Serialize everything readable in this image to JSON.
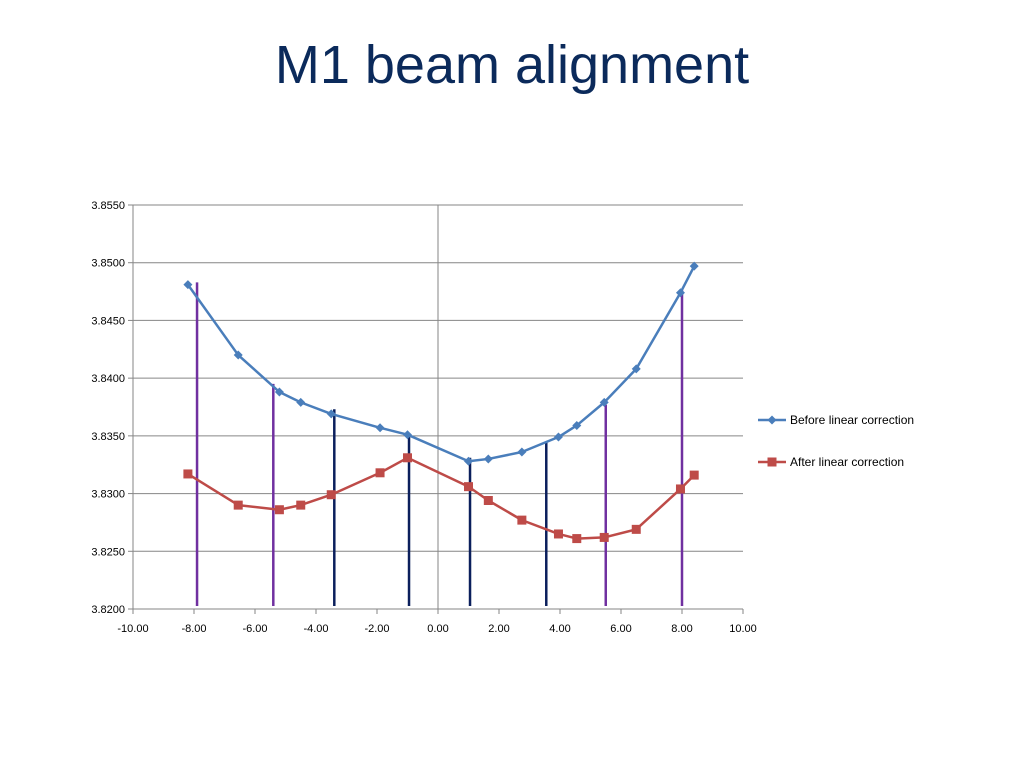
{
  "slide": {
    "title": "M1 beam alignment"
  },
  "colors": {
    "title": "#0b2a5b",
    "before": "#4a7ebb",
    "after": "#be4b48",
    "grid": "#868686",
    "purple_marker": "#7030a0",
    "navy_marker": "#0b1f5c"
  },
  "chart_data": {
    "type": "line",
    "title": "",
    "xlabel": "",
    "ylabel": "",
    "xlim": [
      -10,
      10
    ],
    "ylim": [
      3.82,
      3.855
    ],
    "x_ticks": [
      "-10.00",
      "-8.00",
      "-6.00",
      "-4.00",
      "-2.00",
      "0.00",
      "2.00",
      "4.00",
      "6.00",
      "8.00",
      "10.00"
    ],
    "y_ticks": [
      "3.8200",
      "3.8250",
      "3.8300",
      "3.8350",
      "3.8400",
      "3.8450",
      "3.8500",
      "3.8550"
    ],
    "grid": "horizontal",
    "legend_position": "right",
    "series": [
      {
        "name": "Before linear correction",
        "color": "#4a7ebb",
        "marker": "diamond",
        "x": [
          -8.2,
          -6.55,
          -5.2,
          -4.5,
          -3.5,
          -1.9,
          -1.0,
          1.0,
          1.65,
          2.75,
          3.95,
          4.55,
          5.45,
          6.5,
          7.95,
          8.4
        ],
        "y": [
          3.8481,
          3.842,
          3.8388,
          3.8379,
          3.8369,
          3.8357,
          3.8351,
          3.8328,
          3.833,
          3.8336,
          3.8349,
          3.8359,
          3.8379,
          3.8408,
          3.8474,
          3.8497
        ]
      },
      {
        "name": "After linear correction",
        "color": "#be4b48",
        "marker": "square",
        "x": [
          -8.2,
          -6.55,
          -5.2,
          -4.5,
          -3.5,
          -1.9,
          -1.0,
          1.0,
          1.65,
          2.75,
          3.95,
          4.55,
          5.45,
          6.5,
          7.95,
          8.4
        ],
        "y": [
          3.8317,
          3.829,
          3.8286,
          3.829,
          3.8299,
          3.8318,
          3.8331,
          3.8306,
          3.8294,
          3.8277,
          3.8265,
          3.8261,
          3.8262,
          3.8269,
          3.8304,
          3.8316
        ]
      }
    ],
    "vertical_markers": [
      {
        "x": -7.9,
        "y_top": 3.8483,
        "color": "#7030a0"
      },
      {
        "x": -5.4,
        "y_top": 3.8395,
        "color": "#7030a0"
      },
      {
        "x": -3.4,
        "y_top": 3.8373,
        "color": "#0b1f5c"
      },
      {
        "x": -0.95,
        "y_top": 3.8349,
        "color": "#0b1f5c"
      },
      {
        "x": 1.05,
        "y_top": 3.8331,
        "color": "#0b1f5c"
      },
      {
        "x": 3.55,
        "y_top": 3.8345,
        "color": "#0b1f5c"
      },
      {
        "x": 5.5,
        "y_top": 3.8377,
        "color": "#7030a0"
      },
      {
        "x": 8.0,
        "y_top": 3.8476,
        "color": "#7030a0"
      }
    ]
  }
}
